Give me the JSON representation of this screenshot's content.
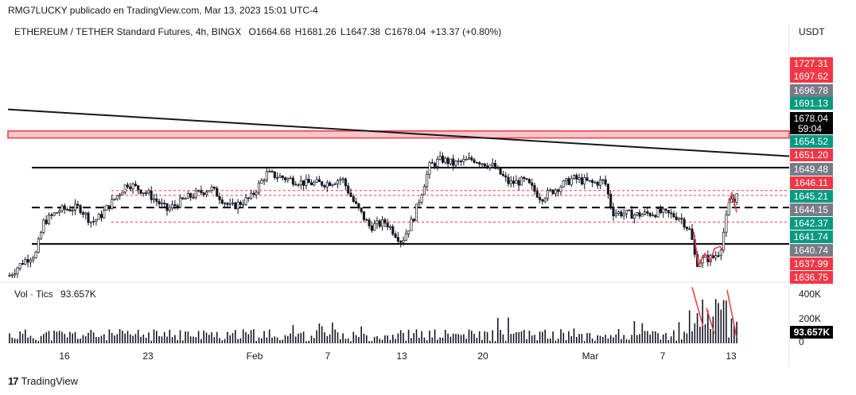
{
  "header": {
    "attribution": "RMG7LUCKY publicado en TradingView.com, Mar 13, 2023 15:01 UTC-4"
  },
  "legend": {
    "symbol": "ETHEREUM / TETHER Standard Futures, 4h, BINGX",
    "open": "O1664.68",
    "high": "H1681.26",
    "low": "L1647.38",
    "close": "C1678.04",
    "change": "+13.37 (+0.80%)"
  },
  "volume_legend": {
    "label": "Vol · Tics",
    "value": "93.657K"
  },
  "footer": {
    "logo_text": "TradingView"
  },
  "colors": {
    "up": "#131722",
    "down": "#131722",
    "red_label": "#f23645",
    "green_label": "#089981",
    "gray_label": "#787b86",
    "black_label": "#000000"
  },
  "chart_data": {
    "type": "candlestick",
    "title": "ETHEREUM / TETHER Standard Futures, 4h, BINGX",
    "y_axis_unit": "USDT",
    "ylim": [
      1636.2,
      1730.0
    ],
    "x_tick_labels": [
      "16",
      "23",
      "Feb",
      "7",
      "13",
      "20",
      "Mar",
      "7",
      "13"
    ],
    "price_labels": [
      {
        "value": "1727.31",
        "color": "red"
      },
      {
        "value": "1697.62",
        "color": "red"
      },
      {
        "value": "1696.78",
        "color": "gray"
      },
      {
        "value": "1691.13",
        "color": "green"
      },
      {
        "value": "1678.04",
        "color": "black",
        "countdown": "59:04"
      },
      {
        "value": "1654.52",
        "color": "green"
      },
      {
        "value": "1651.20",
        "color": "red"
      },
      {
        "value": "1649.48",
        "color": "gray"
      },
      {
        "value": "1646.11",
        "color": "red"
      },
      {
        "value": "1645.21",
        "color": "green"
      },
      {
        "value": "1644.15",
        "color": "gray"
      },
      {
        "value": "1642.37",
        "color": "green"
      },
      {
        "value": "1641.74",
        "color": "green"
      },
      {
        "value": "1640.74",
        "color": "gray"
      },
      {
        "value": "1637.99",
        "color": "red"
      },
      {
        "value": "1636.75",
        "color": "red"
      }
    ],
    "horizontal_levels": [
      {
        "price": 1697.6,
        "style": "red-zone-top"
      },
      {
        "price": 1694.7,
        "style": "red-zone-bottom"
      },
      {
        "price": 1682.5,
        "style": "solid"
      },
      {
        "price": 1666.0,
        "style": "dashed"
      },
      {
        "price": 1651.0,
        "style": "solid"
      },
      {
        "price": 1673.0,
        "style": "dotted-red"
      },
      {
        "price": 1671.0,
        "style": "dotted-red"
      },
      {
        "price": 1660.0,
        "style": "dotted-red"
      }
    ],
    "trendline": {
      "from_price": 1706.5,
      "to_price": 1687.2
    },
    "last_price": 1678.04,
    "volume": {
      "last": "93.657K",
      "axis_labels": [
        "400K",
        "200K",
        "0"
      ],
      "max": 430000
    }
  }
}
